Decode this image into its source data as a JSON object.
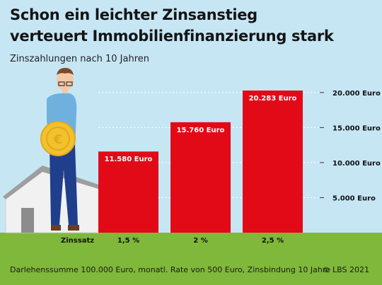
{
  "title_line1": "Schon ein leichter Zinsanstieg",
  "title_line2": "verteuert Immobilienfinanzierung stark",
  "subtitle": "Zinszahlungen nach 10 Jahren",
  "footnote": "Darlehenssumme 100.000 Euro, monatl. Rate von 500 Euro, Zinsbindung 10 Jahre",
  "credit": "© LBS 2021",
  "colors": {
    "bar": "#e30a18",
    "background": "#c6e6f4",
    "ground": "#7fb83a"
  },
  "chart_data": {
    "type": "bar",
    "title": "Zinszahlungen nach 10 Jahren",
    "xlabel": "Zinssatz",
    "ylabel": "",
    "categories": [
      "1,5 %",
      "2 %",
      "2,5 %"
    ],
    "values": [
      11580,
      15760,
      20283
    ],
    "data_labels": [
      "11.580 Euro",
      "15.760 Euro",
      "20.283 Euro"
    ],
    "yticks": [
      5000,
      10000,
      15000,
      20000
    ],
    "ytick_labels": [
      "5.000 Euro",
      "10.000 Euro",
      "15.000 Euro",
      "20.000 Euro"
    ],
    "ylim": [
      0,
      20283
    ],
    "grid": true,
    "legend": "none"
  }
}
